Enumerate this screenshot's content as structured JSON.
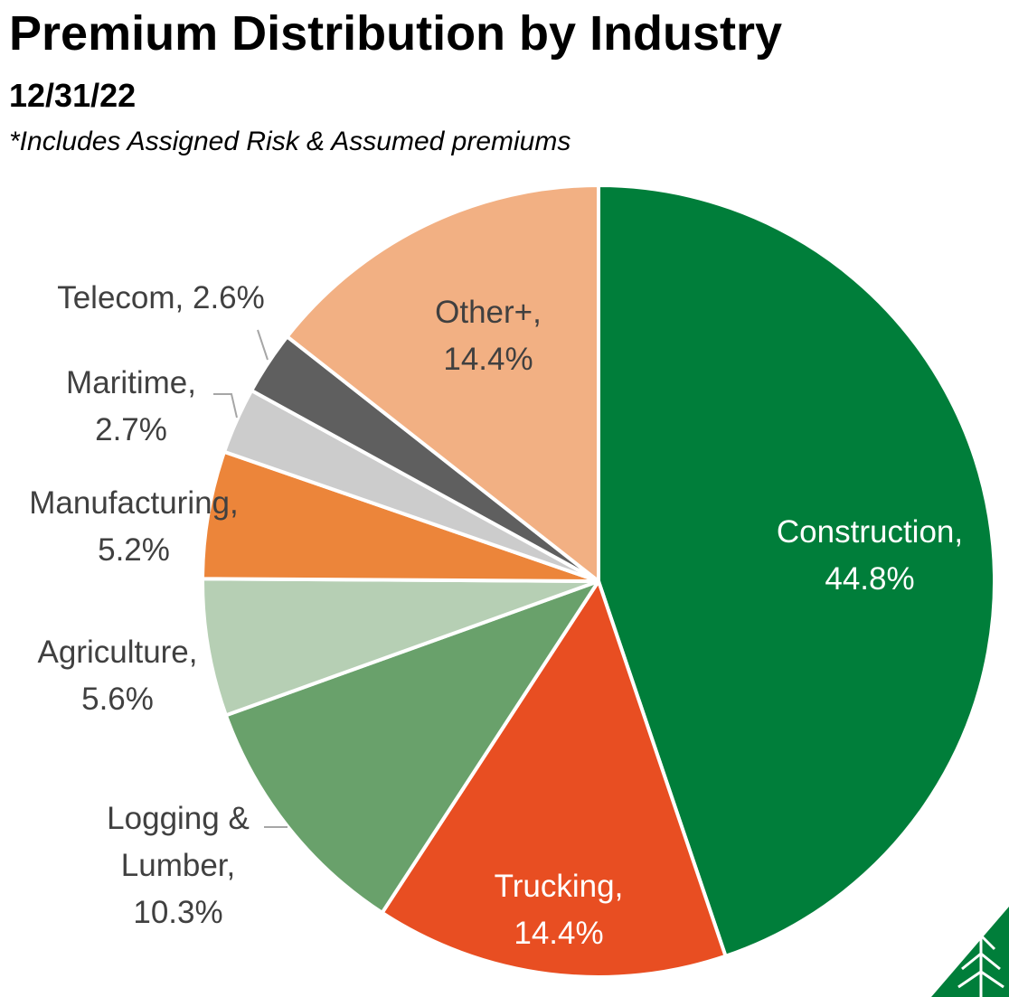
{
  "title": "Premium Distribution by Industry",
  "date": "12/31/22",
  "note": "*Includes Assigned Risk & Assumed premiums",
  "chart_data": {
    "type": "pie",
    "title": "Premium Distribution by Industry",
    "subtitle": "12/31/22",
    "slices": [
      {
        "name": "Construction",
        "value": 44.8,
        "label": "44.8%",
        "color": "#007e3a"
      },
      {
        "name": "Trucking",
        "value": 14.4,
        "label": "14.4%",
        "color": "#e84e22"
      },
      {
        "name": "Logging & Lumber",
        "value": 10.3,
        "label": "10.3%",
        "color": "#69a16b"
      },
      {
        "name": "Agriculture",
        "value": 5.6,
        "label": "5.6%",
        "color": "#b6cfb4"
      },
      {
        "name": "Manufacturing",
        "value": 5.2,
        "label": "5.2%",
        "color": "#ec853a"
      },
      {
        "name": "Maritime",
        "value": 2.7,
        "label": "2.7%",
        "color": "#cccccc"
      },
      {
        "name": "Telecom",
        "value": 2.6,
        "label": "2.6%",
        "color": "#5f5f5f"
      },
      {
        "name": "Other+",
        "value": 14.4,
        "label": "14.4%",
        "color": "#f2b083"
      }
    ]
  },
  "labels": [
    {
      "lines": [
        "Construction,",
        "44.8%"
      ]
    },
    {
      "lines": [
        "Trucking,",
        "14.4%"
      ]
    },
    {
      "lines": [
        "Logging &",
        "Lumber,",
        "10.3%"
      ]
    },
    {
      "lines": [
        "Agriculture,",
        "5.6%"
      ]
    },
    {
      "lines": [
        "Manufacturing,",
        "5.2%"
      ]
    },
    {
      "lines": [
        "Maritime,",
        "2.7%"
      ]
    },
    {
      "lines": [
        "Telecom, 2.6%"
      ]
    },
    {
      "lines": [
        "Other+,",
        "14.4%"
      ]
    }
  ],
  "colors": {
    "inside_label_light": "#ffffff",
    "label_text": "#404040",
    "leader_line": "#a6a6a6",
    "logo_green": "#007e3a"
  }
}
